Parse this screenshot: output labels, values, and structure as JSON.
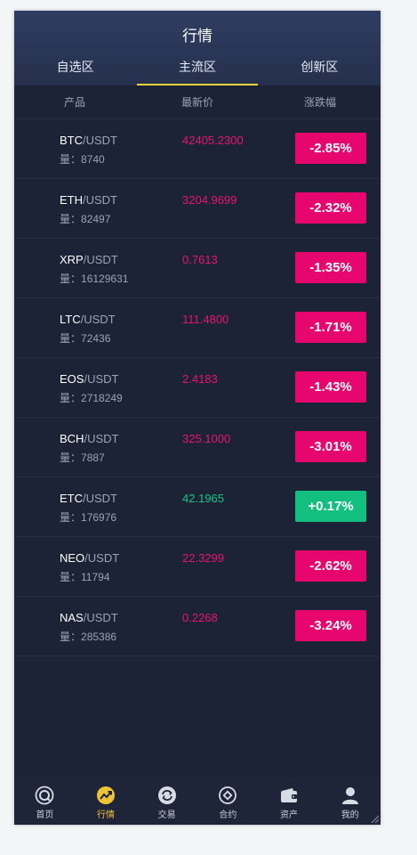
{
  "header": {
    "title": "行情"
  },
  "tabs": [
    {
      "label": "自选区",
      "active": false
    },
    {
      "label": "主流区",
      "active": true
    },
    {
      "label": "创新区",
      "active": false
    }
  ],
  "columns": {
    "product": "产品",
    "price": "最新价",
    "change": "涨跌幅"
  },
  "volume_prefix": "量：",
  "colors": {
    "down": "#e6066e",
    "up": "#12bf7f",
    "accent": "#f0d43a"
  },
  "rows": [
    {
      "base": "BTC",
      "quote": "/USDT",
      "volume": "8740",
      "price": "42405.2300",
      "change": "-2.85%",
      "direction": "down"
    },
    {
      "base": "ETH",
      "quote": "/USDT",
      "volume": "82497",
      "price": "3204.9699",
      "change": "-2.32%",
      "direction": "down"
    },
    {
      "base": "XRP",
      "quote": "/USDT",
      "volume": "16129631",
      "price": "0.7613",
      "change": "-1.35%",
      "direction": "down"
    },
    {
      "base": "LTC",
      "quote": "/USDT",
      "volume": "72436",
      "price": "111.4800",
      "change": "-1.71%",
      "direction": "down"
    },
    {
      "base": "EOS",
      "quote": "/USDT",
      "volume": "2718249",
      "price": "2.4183",
      "change": "-1.43%",
      "direction": "down"
    },
    {
      "base": "BCH",
      "quote": "/USDT",
      "volume": "7887",
      "price": "325.1000",
      "change": "-3.01%",
      "direction": "down"
    },
    {
      "base": "ETC",
      "quote": "/USDT",
      "volume": "176976",
      "price": "42.1965",
      "change": "+0.17%",
      "direction": "up"
    },
    {
      "base": "NEO",
      "quote": "/USDT",
      "volume": "11794",
      "price": "22.3299",
      "change": "-2.62%",
      "direction": "down"
    },
    {
      "base": "NAS",
      "quote": "/USDT",
      "volume": "285386",
      "price": "0.2268",
      "change": "-3.24%",
      "direction": "down"
    }
  ],
  "bottom_nav": [
    {
      "label": "首页",
      "icon": "home-icon",
      "active": false
    },
    {
      "label": "行情",
      "icon": "market-icon",
      "active": true
    },
    {
      "label": "交易",
      "icon": "trade-icon",
      "active": false
    },
    {
      "label": "合约",
      "icon": "contract-icon",
      "active": false
    },
    {
      "label": "资产",
      "icon": "wallet-icon",
      "active": false
    },
    {
      "label": "我的",
      "icon": "user-icon",
      "active": false
    }
  ]
}
